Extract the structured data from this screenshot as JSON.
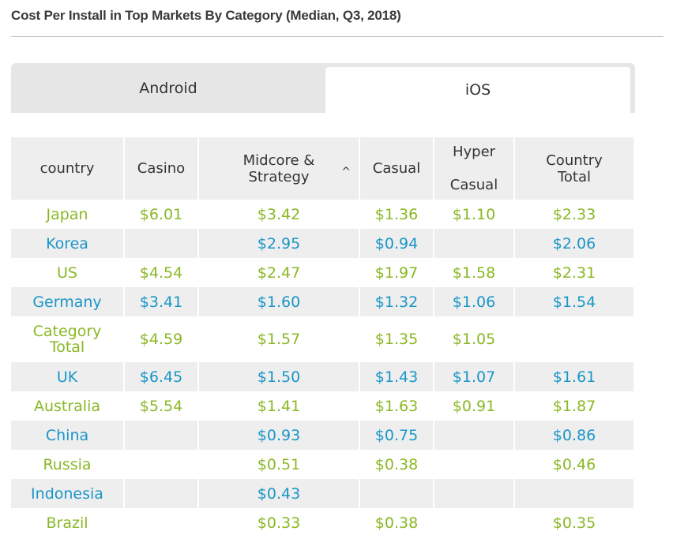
{
  "title": "Cost Per Install in Top Markets By Category (Median, Q3, 2018)",
  "tabs": [
    {
      "label": "Android",
      "active": false
    },
    {
      "label": "iOS",
      "active": true
    }
  ],
  "colors": {
    "green": "#8ab825",
    "blue": "#1a96c8",
    "header_bg": "#eeeeee",
    "tab_bg": "#e6e6e6"
  },
  "chart_data": {
    "type": "table",
    "columns": [
      {
        "label_lines": [
          "country"
        ]
      },
      {
        "label_lines": [
          "Casino"
        ]
      },
      {
        "label_lines": [
          "Midcore &",
          "Strategy"
        ],
        "sort": "ascending"
      },
      {
        "label_lines": [
          "Casual"
        ]
      },
      {
        "label_lines": [
          "Hyper",
          "Casual"
        ]
      },
      {
        "label_lines": [
          "Country",
          "Total"
        ]
      }
    ],
    "rows": [
      {
        "country": [
          "Japan"
        ],
        "casino": "$6.01",
        "midcore": "$3.42",
        "casual": "$1.36",
        "hyper": "$1.10",
        "total": "$2.33"
      },
      {
        "country": [
          "Korea"
        ],
        "casino": "",
        "midcore": "$2.95",
        "casual": "$0.94",
        "hyper": "",
        "total": "$2.06"
      },
      {
        "country": [
          "US"
        ],
        "casino": "$4.54",
        "midcore": "$2.47",
        "casual": "$1.97",
        "hyper": "$1.58",
        "total": "$2.31"
      },
      {
        "country": [
          "Germany"
        ],
        "casino": "$3.41",
        "midcore": "$1.60",
        "casual": "$1.32",
        "hyper": "$1.06",
        "total": "$1.54"
      },
      {
        "country": [
          "Category",
          "Total"
        ],
        "casino": "$4.59",
        "midcore": "$1.57",
        "casual": "$1.35",
        "hyper": "$1.05",
        "total": ""
      },
      {
        "country": [
          "UK"
        ],
        "casino": "$6.45",
        "midcore": "$1.50",
        "casual": "$1.43",
        "hyper": "$1.07",
        "total": "$1.61"
      },
      {
        "country": [
          "Australia"
        ],
        "casino": "$5.54",
        "midcore": "$1.41",
        "casual": "$1.63",
        "hyper": "$0.91",
        "total": "$1.87"
      },
      {
        "country": [
          "China"
        ],
        "casino": "",
        "midcore": "$0.93",
        "casual": "$0.75",
        "hyper": "",
        "total": "$0.86"
      },
      {
        "country": [
          "Russia"
        ],
        "casino": "",
        "midcore": "$0.51",
        "casual": "$0.38",
        "hyper": "",
        "total": "$0.46"
      },
      {
        "country": [
          "Indonesia"
        ],
        "casino": "",
        "midcore": "$0.43",
        "casual": "",
        "hyper": "",
        "total": ""
      },
      {
        "country": [
          "Brazil"
        ],
        "casino": "",
        "midcore": "$0.33",
        "casual": "$0.38",
        "hyper": "",
        "total": "$0.35"
      }
    ]
  }
}
